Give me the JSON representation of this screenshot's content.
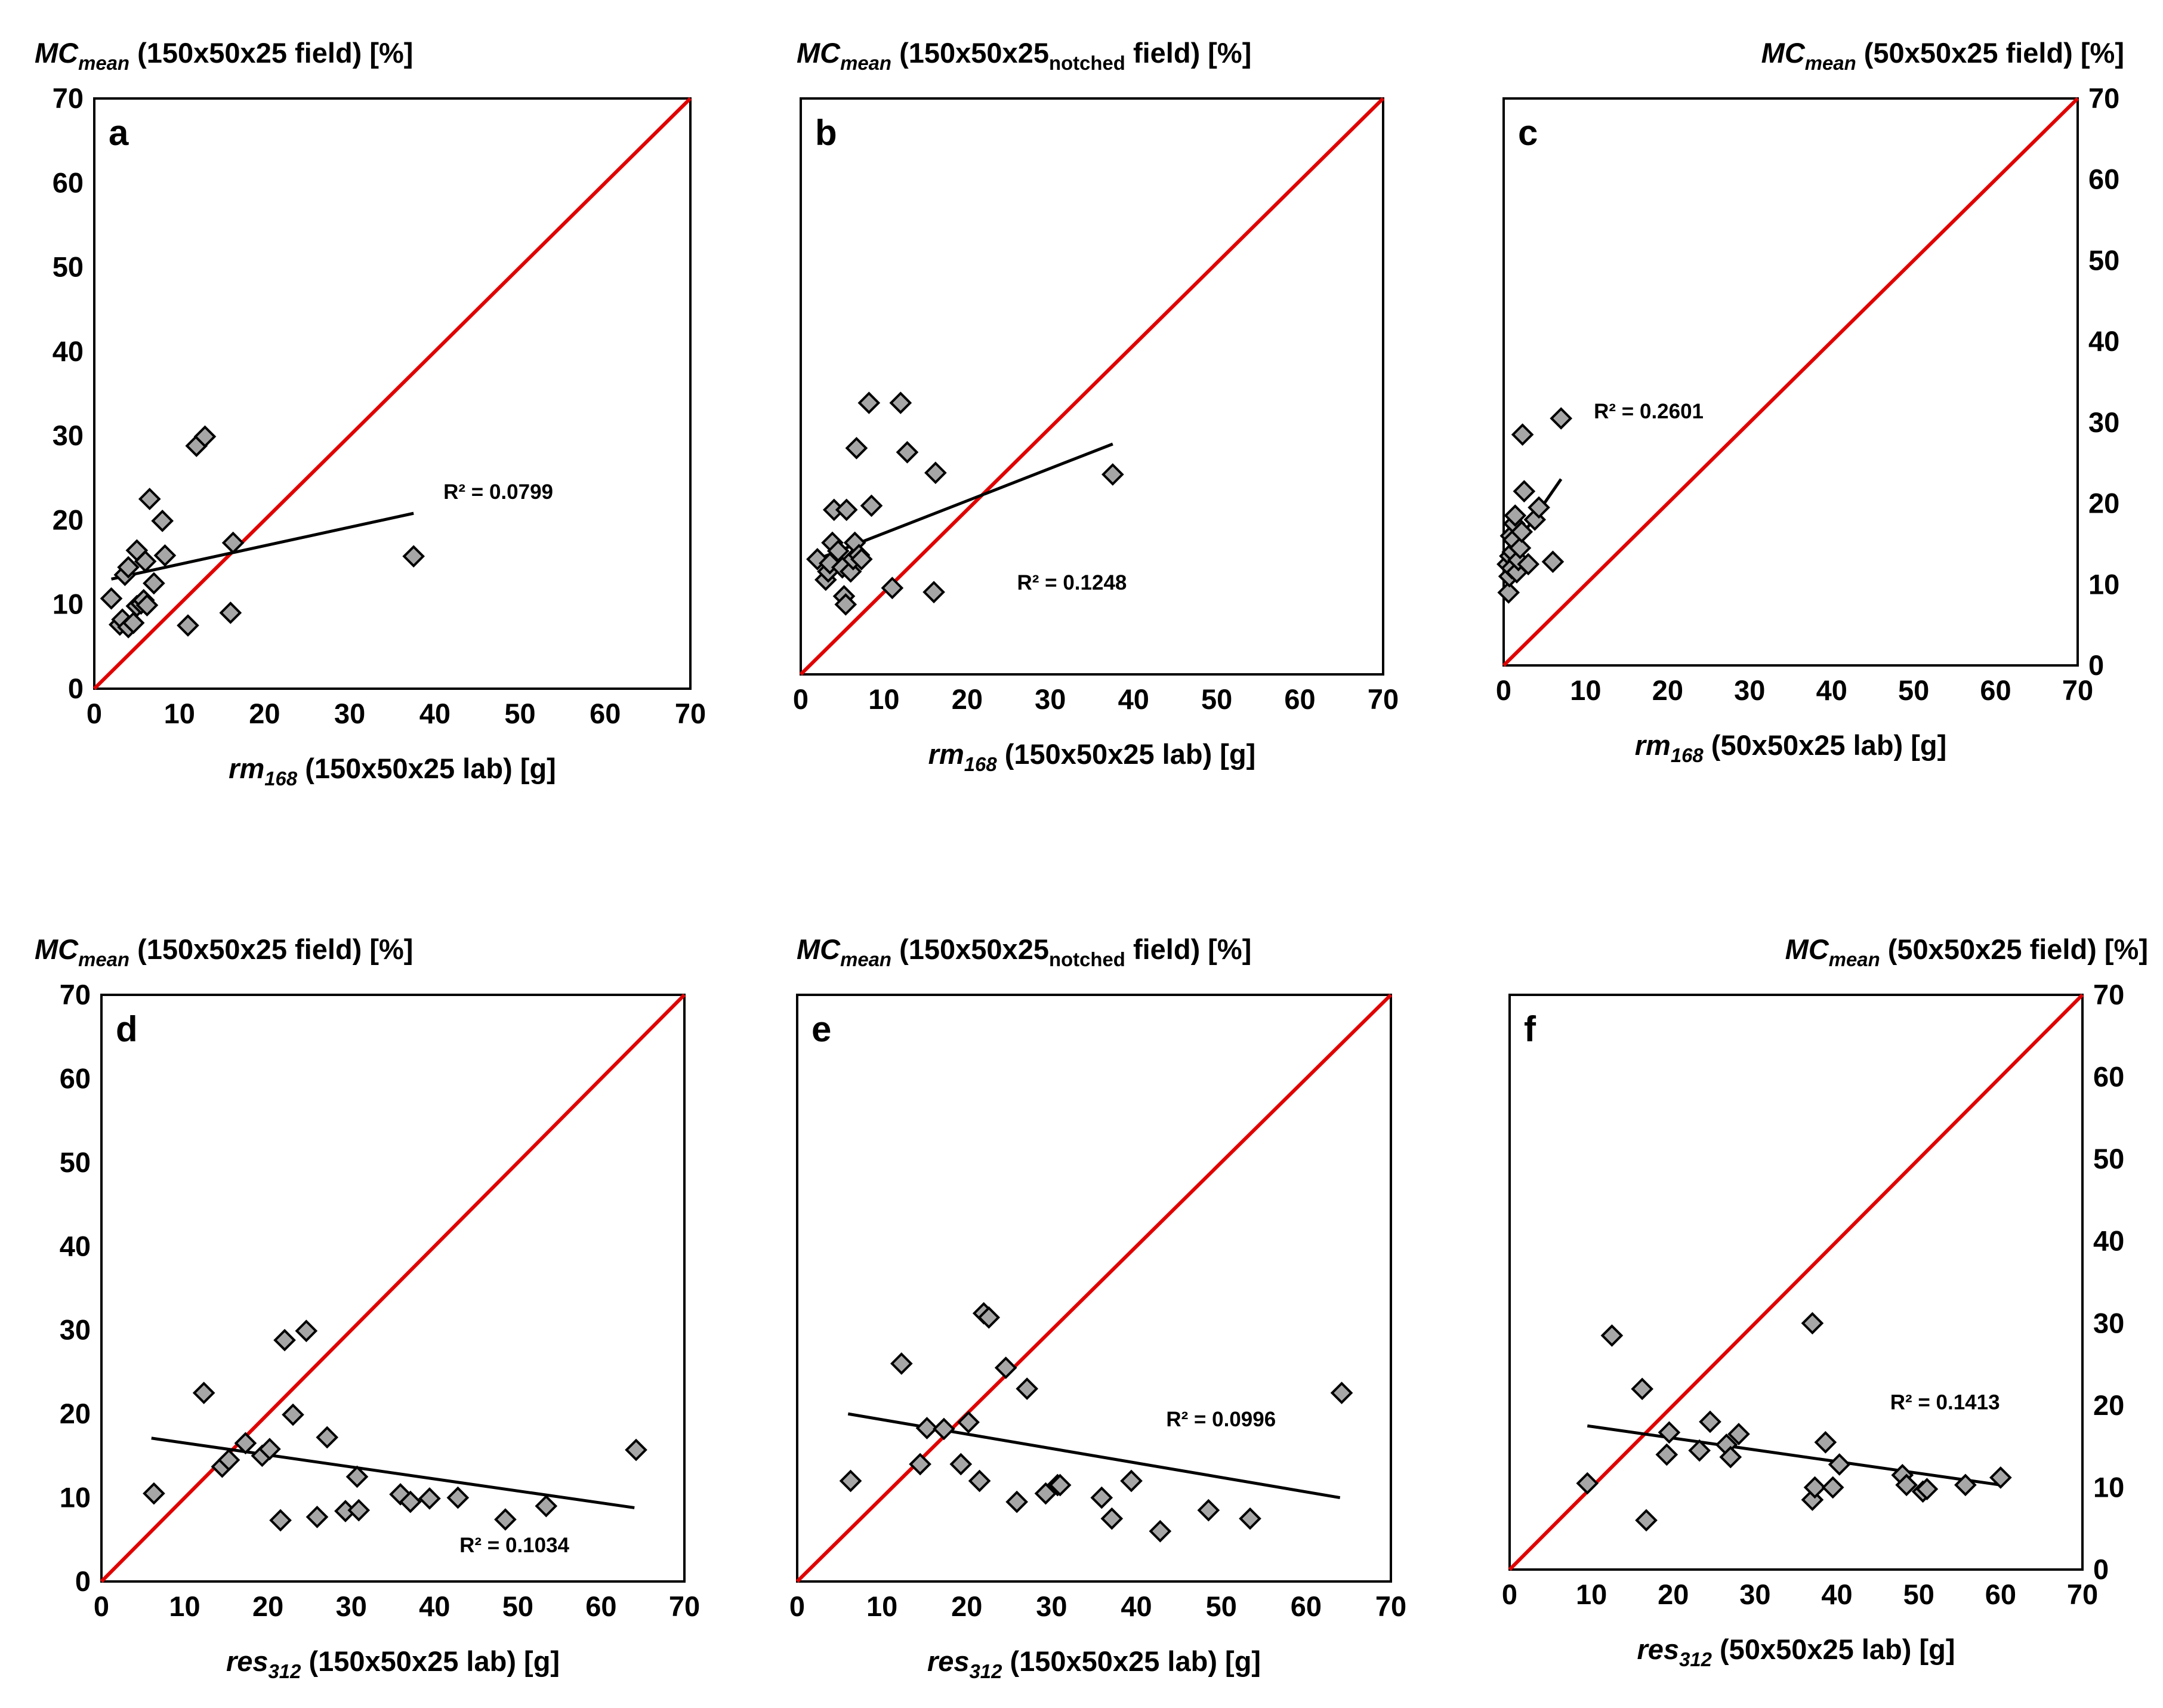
{
  "colors": {
    "identity_line": "#e00000",
    "trendline": "#000000",
    "marker_fill": "#a6a6a6",
    "marker_stroke": "#000000"
  },
  "chart_data": [
    {
      "panel": "a",
      "type": "scatter",
      "ylabel": {
        "main": "MC",
        "sub": "mean",
        "rest": " (150x50x25 field) [%]"
      },
      "xlabel": {
        "main": "rm",
        "sub": "168",
        "rest": " (150x50x25 lab) [g]"
      },
      "xlim": [
        0,
        70
      ],
      "ylim": [
        0,
        70
      ],
      "xticks": [
        "0",
        "10",
        "20",
        "30",
        "40",
        "50",
        "60",
        "70"
      ],
      "yticks": [
        "0",
        "10",
        "20",
        "30",
        "40",
        "50",
        "60",
        "70"
      ],
      "show_yticks": true,
      "yaxis_side": "left",
      "r2_label": "R² = 0.0799",
      "r2_anchor": [
        41,
        22.5
      ],
      "trendline": [
        [
          2,
          13
        ],
        [
          37.5,
          20.8
        ]
      ],
      "points": [
        [
          2,
          10.7
        ],
        [
          3,
          7.6
        ],
        [
          3.3,
          8.2
        ],
        [
          3.6,
          13.5
        ],
        [
          4,
          14.4
        ],
        [
          4,
          7.3
        ],
        [
          4.6,
          7.8
        ],
        [
          5,
          9.8
        ],
        [
          5,
          16.4
        ],
        [
          5.5,
          10.1
        ],
        [
          5.8,
          10.5
        ],
        [
          6,
          15.1
        ],
        [
          6.2,
          9.9
        ],
        [
          6.5,
          22.5
        ],
        [
          7,
          12.5
        ],
        [
          8,
          19.9
        ],
        [
          8.3,
          15.8
        ],
        [
          11,
          7.5
        ],
        [
          12,
          28.8
        ],
        [
          13,
          29.9
        ],
        [
          16,
          9
        ],
        [
          16.3,
          17.3
        ],
        [
          37.5,
          15.7
        ]
      ]
    },
    {
      "panel": "b",
      "type": "scatter",
      "ylabel": {
        "main": "MC",
        "sub": "mean",
        "rest": " (150x50x25",
        "sub2": "notched",
        "rest2": " field) [%]"
      },
      "xlabel": {
        "main": "rm",
        "sub": "168",
        "rest": " (150x50x25 lab) [g]"
      },
      "xlim": [
        0,
        70
      ],
      "ylim": [
        0,
        70
      ],
      "xticks": [
        "0",
        "10",
        "20",
        "30",
        "40",
        "50",
        "60",
        "70"
      ],
      "yticks": [
        "0",
        "10",
        "20",
        "30",
        "40",
        "50",
        "60",
        "70"
      ],
      "show_yticks": false,
      "yaxis_side": "left",
      "r2_label": "R² = 0.1248",
      "r2_anchor": [
        26,
        10.3
      ],
      "trendline": [
        [
          2,
          14
        ],
        [
          37.5,
          28
        ]
      ],
      "points": [
        [
          2,
          14
        ],
        [
          3,
          11.5
        ],
        [
          3.3,
          12.5
        ],
        [
          3.5,
          13.5
        ],
        [
          3.8,
          16
        ],
        [
          4,
          20
        ],
        [
          4.5,
          15
        ],
        [
          5,
          13
        ],
        [
          5.2,
          9.5
        ],
        [
          5.4,
          8.5
        ],
        [
          5.5,
          20
        ],
        [
          6,
          12.5
        ],
        [
          6.3,
          14
        ],
        [
          6.5,
          16
        ],
        [
          6.7,
          27.5
        ],
        [
          7,
          14.5
        ],
        [
          7.3,
          14
        ],
        [
          8.2,
          33
        ],
        [
          8.5,
          20.5
        ],
        [
          11,
          10.5
        ],
        [
          12,
          33
        ],
        [
          12.8,
          27
        ],
        [
          16,
          10
        ],
        [
          16.2,
          24.5
        ],
        [
          37.5,
          24.3
        ]
      ]
    },
    {
      "panel": "c",
      "type": "scatter",
      "ylabel": {
        "main": "MC",
        "sub": "mean",
        "rest": " (50x50x25 field) [%]"
      },
      "xlabel": {
        "main": "rm",
        "sub": "168",
        "rest": " (50x50x25 lab) [g]"
      },
      "xlim": [
        0,
        70
      ],
      "ylim": [
        0,
        70
      ],
      "xticks": [
        "0",
        "10",
        "20",
        "30",
        "40",
        "50",
        "60",
        "70"
      ],
      "yticks": [
        "0",
        "10",
        "20",
        "30",
        "40",
        "50",
        "60",
        "70"
      ],
      "show_yticks": true,
      "yaxis_side": "right",
      "r2_label": "R² = 0.2601",
      "r2_anchor": [
        11,
        30.5
      ],
      "trendline": [
        [
          0.5,
          13.5
        ],
        [
          7,
          23
        ]
      ],
      "points": [
        [
          0.5,
          12.5
        ],
        [
          0.6,
          9
        ],
        [
          0.7,
          11
        ],
        [
          0.8,
          13.5
        ],
        [
          0.9,
          16
        ],
        [
          1,
          12
        ],
        [
          1.1,
          14
        ],
        [
          1.2,
          15.5
        ],
        [
          1.3,
          17.5
        ],
        [
          1.4,
          18.5
        ],
        [
          1.6,
          11.5
        ],
        [
          1.8,
          13
        ],
        [
          2,
          14.5
        ],
        [
          2.2,
          16.5
        ],
        [
          2.5,
          21.5
        ],
        [
          2.3,
          28.5
        ],
        [
          3,
          12.5
        ],
        [
          3.8,
          18
        ],
        [
          4.3,
          19.5
        ],
        [
          6,
          12.8
        ],
        [
          7,
          30.5
        ]
      ]
    },
    {
      "panel": "d",
      "type": "scatter",
      "ylabel": {
        "main": "MC",
        "sub": "mean",
        "rest": " (150x50x25 field) [%]"
      },
      "xlabel": {
        "main": "res",
        "sub": "312",
        "rest": " (150x50x25 lab) [g]"
      },
      "xlim": [
        0,
        70
      ],
      "ylim": [
        0,
        70
      ],
      "xticks": [
        "0",
        "10",
        "20",
        "30",
        "40",
        "50",
        "60",
        "70"
      ],
      "yticks": [
        "0",
        "10",
        "20",
        "30",
        "40",
        "50",
        "60",
        "70"
      ],
      "show_yticks": true,
      "yaxis_side": "left",
      "r2_label": "R² = 0.1034",
      "r2_anchor": [
        43,
        3.5
      ],
      "trendline": [
        [
          6,
          17.1
        ],
        [
          64,
          8.8
        ]
      ],
      "points": [
        [
          6.3,
          10.5
        ],
        [
          12.3,
          22.5
        ],
        [
          14.5,
          13.7
        ],
        [
          15.3,
          14.5
        ],
        [
          17.3,
          16.5
        ],
        [
          19.3,
          15
        ],
        [
          20.2,
          15.8
        ],
        [
          21.5,
          7.3
        ],
        [
          22,
          28.8
        ],
        [
          23,
          19.9
        ],
        [
          24.6,
          29.9
        ],
        [
          25.9,
          7.7
        ],
        [
          27.1,
          17.2
        ],
        [
          29.3,
          8.4
        ],
        [
          30.7,
          12.5
        ],
        [
          30.9,
          8.5
        ],
        [
          35.9,
          10.4
        ],
        [
          37.1,
          9.5
        ],
        [
          39.4,
          9.9
        ],
        [
          42.8,
          10
        ],
        [
          48.5,
          7.4
        ],
        [
          53.4,
          9
        ],
        [
          64.2,
          15.7
        ]
      ]
    },
    {
      "panel": "e",
      "type": "scatter",
      "ylabel": {
        "main": "MC",
        "sub": "mean",
        "rest": " (150x50x25",
        "sub2": "notched",
        "rest2": " field) [%]"
      },
      "xlabel": {
        "main": "res",
        "sub": "312",
        "rest": " (150x50x25 lab) [g]"
      },
      "xlim": [
        0,
        70
      ],
      "ylim": [
        0,
        70
      ],
      "xticks": [
        "0",
        "10",
        "20",
        "30",
        "40",
        "50",
        "60",
        "70"
      ],
      "yticks": [
        "0",
        "10",
        "20",
        "30",
        "40",
        "50",
        "60",
        "70"
      ],
      "show_yticks": false,
      "yaxis_side": "left",
      "r2_label": "R² = 0.0996",
      "r2_anchor": [
        43.5,
        18.5
      ],
      "trendline": [
        [
          6,
          20
        ],
        [
          64,
          10
        ]
      ],
      "points": [
        [
          6.3,
          12
        ],
        [
          12.3,
          26
        ],
        [
          14.5,
          14
        ],
        [
          15.3,
          18.3
        ],
        [
          17.3,
          18.2
        ],
        [
          19.3,
          14
        ],
        [
          20.2,
          19
        ],
        [
          21.5,
          12
        ],
        [
          22,
          32
        ],
        [
          22.6,
          31.5
        ],
        [
          24.6,
          25.5
        ],
        [
          25.9,
          9.5
        ],
        [
          27.1,
          23
        ],
        [
          29.3,
          10.5
        ],
        [
          30.7,
          11.5
        ],
        [
          31,
          11.5
        ],
        [
          35.9,
          10
        ],
        [
          37.1,
          7.5
        ],
        [
          39.4,
          12
        ],
        [
          42.8,
          6
        ],
        [
          48.5,
          8.5
        ],
        [
          53.4,
          7.5
        ],
        [
          64.2,
          22.5
        ]
      ]
    },
    {
      "panel": "f",
      "type": "scatter",
      "ylabel": {
        "main": "MC",
        "sub": "mean",
        "rest": " (50x50x25 field) [%]"
      },
      "xlabel": {
        "main": "res",
        "sub": "312",
        "rest": " (50x50x25 lab) [g]"
      },
      "xlim": [
        0,
        70
      ],
      "ylim": [
        0,
        70
      ],
      "xticks": [
        "0",
        "10",
        "20",
        "30",
        "40",
        "50",
        "60",
        "70"
      ],
      "yticks": [
        "0",
        "10",
        "20",
        "30",
        "40",
        "50",
        "60",
        "70"
      ],
      "show_yticks": true,
      "yaxis_side": "right",
      "r2_label": "R² = 0.1413",
      "r2_anchor": [
        46.5,
        19.5
      ],
      "trendline": [
        [
          9.5,
          17.5
        ],
        [
          60,
          10.3
        ]
      ],
      "points": [
        [
          9.5,
          10.5
        ],
        [
          12.5,
          28.5
        ],
        [
          16.2,
          22
        ],
        [
          16.7,
          6
        ],
        [
          19.2,
          14
        ],
        [
          19.5,
          16.7
        ],
        [
          23.2,
          14.5
        ],
        [
          24.5,
          18
        ],
        [
          26.5,
          15.2
        ],
        [
          27,
          13.7
        ],
        [
          28,
          16.5
        ],
        [
          37,
          8.5
        ],
        [
          37,
          30
        ],
        [
          37.3,
          10
        ],
        [
          38.6,
          15.5
        ],
        [
          39.5,
          10
        ],
        [
          40.3,
          12.8
        ],
        [
          48,
          11.5
        ],
        [
          48.5,
          10.3
        ],
        [
          50.5,
          9.5
        ],
        [
          51,
          9.8
        ],
        [
          55.7,
          10.3
        ],
        [
          60,
          11.2
        ]
      ]
    }
  ]
}
